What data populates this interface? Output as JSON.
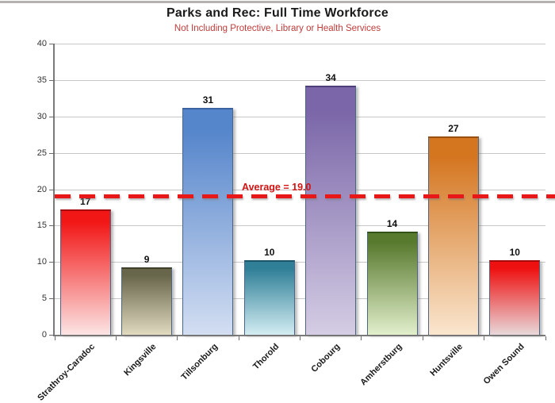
{
  "chart_data": {
    "type": "bar",
    "title": "Parks and Rec: Full Time Workforce",
    "subtitle": "Not Including Protective, Library or Health Services",
    "categories": [
      "Strathroy-Caradoc",
      "Kingsville",
      "Tillsonburg",
      "Thorold",
      "Cobourg",
      "Amherstburg",
      "Huntsville",
      "Owen Sound"
    ],
    "values": [
      17,
      9,
      31,
      10,
      34,
      14,
      27,
      10
    ],
    "xlabel": "",
    "ylabel": "",
    "ylim": [
      0,
      40
    ],
    "yticks": [
      0,
      5,
      10,
      15,
      20,
      25,
      30,
      35,
      40
    ],
    "grid": true,
    "legend": false,
    "average_line": {
      "value": 19.0,
      "label": "Average = 19.0"
    },
    "bar_styles": [
      {
        "top": "#f21717",
        "bottom": "#fce4e4",
        "edge": "#a80b0b"
      },
      {
        "top": "#67654a",
        "bottom": "#e0dabf",
        "edge": "#403f2a"
      },
      {
        "top": "#5585cb",
        "bottom": "#d3def2",
        "edge": "#3a62a0"
      },
      {
        "top": "#2f7f97",
        "bottom": "#d3edf2",
        "edge": "#1c5468"
      },
      {
        "top": "#7a66a8",
        "bottom": "#d4cde4",
        "edge": "#4f3f78"
      },
      {
        "top": "#587a2e",
        "bottom": "#e2efcc",
        "edge": "#35511a"
      },
      {
        "top": "#d4751f",
        "bottom": "#fae6cf",
        "edge": "#9a4f0e"
      },
      {
        "top": "#ee1111",
        "bottom": "#e8d8da",
        "edge": "#a80b0b"
      }
    ],
    "colors": {
      "title": "#1a1a1a",
      "subtitle": "#c13b3b",
      "average_line": "#e81818",
      "average_label": "#d11414",
      "grid": "#c8c8c8",
      "axis": "#7a7a7a",
      "tick": "#6b6b6b",
      "bar_border": "#4a6585",
      "value_label": "#111111",
      "x_label": "#1a1a1a",
      "y_label": "#333333",
      "top_border": "#b6b2b2"
    }
  }
}
